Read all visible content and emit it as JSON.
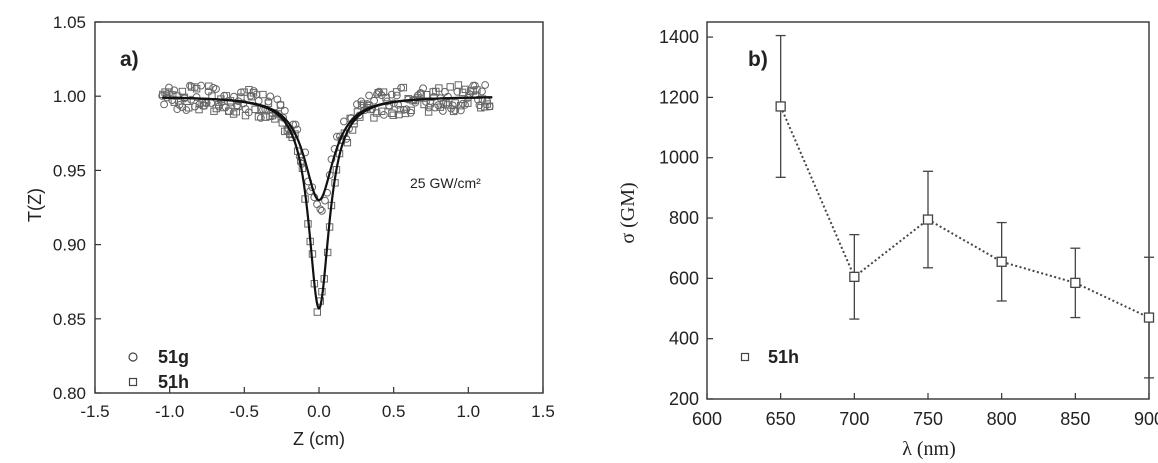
{
  "chart_data": [
    {
      "panel_label": "a)",
      "type": "scatter",
      "xlabel": "Z (cm)",
      "ylabel": "T(Z)",
      "xlim": [
        -1.5,
        1.5
      ],
      "ylim": [
        0.8,
        1.05
      ],
      "xticks": [
        "-1.5",
        "-1.0",
        "-0.5",
        "0.0",
        "0.5",
        "1.0",
        "1.5"
      ],
      "yticks": [
        "0.80",
        "0.85",
        "0.90",
        "0.95",
        "1.00",
        "1.05"
      ],
      "annotation": "25 GW/cm²",
      "grid": false,
      "legend_position": "bottom-left",
      "series": [
        {
          "name": "51g",
          "marker": "circle",
          "fit": true,
          "min_transmittance": 0.93,
          "fit_half_width_cm": 0.12,
          "noise": 0.009
        },
        {
          "name": "51h",
          "marker": "square",
          "fit": true,
          "min_transmittance": 0.857,
          "fit_half_width_cm": 0.085,
          "noise": 0.009
        }
      ]
    },
    {
      "panel_label": "b)",
      "type": "line",
      "xlabel": "λ (nm)",
      "ylabel": "σ (GM)",
      "xlim": [
        600,
        900
      ],
      "ylim": [
        200,
        1450
      ],
      "xticks": [
        "600",
        "650",
        "700",
        "750",
        "800",
        "850",
        "900"
      ],
      "yticks": [
        "200",
        "400",
        "600",
        "800",
        "1000",
        "1200",
        "1400"
      ],
      "grid": false,
      "legend_position": "bottom-left",
      "series": [
        {
          "name": "51h",
          "marker": "square",
          "x": [
            650,
            700,
            750,
            800,
            850,
            900
          ],
          "y": [
            1170,
            605,
            795,
            655,
            585,
            470
          ],
          "error": [
            235,
            140,
            160,
            130,
            115,
            200
          ]
        }
      ]
    }
  ]
}
